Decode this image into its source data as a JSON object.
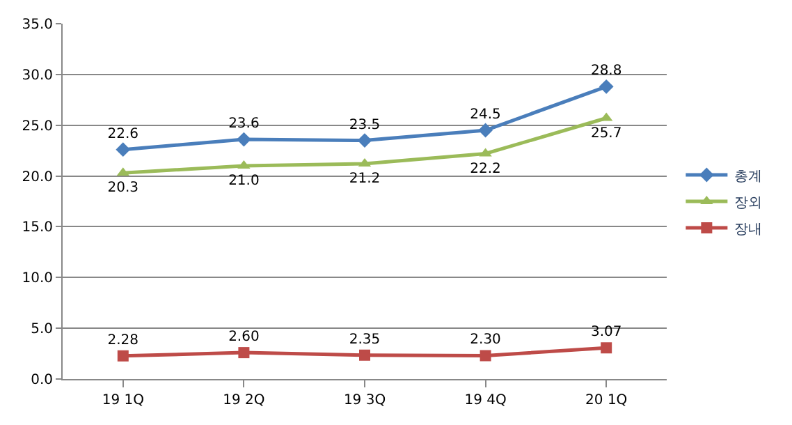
{
  "chart_data": {
    "type": "line",
    "categories": [
      "19 1Q",
      "19 2Q",
      "19 3Q",
      "19 4Q",
      "20 1Q"
    ],
    "series": [
      {
        "name": "총계",
        "color": "#4a7ebb",
        "marker": "diamond",
        "values": [
          22.6,
          23.6,
          23.5,
          24.5,
          28.8
        ],
        "value_labels": [
          "22.6",
          "23.6",
          "23.5",
          "24.5",
          "28.8"
        ]
      },
      {
        "name": "장외",
        "color": "#9bbb59",
        "marker": "triangle",
        "values": [
          20.3,
          21.0,
          21.2,
          22.2,
          25.7
        ],
        "value_labels": [
          "20.3",
          "21.0",
          "21.2",
          "22.2",
          "25.7"
        ]
      },
      {
        "name": "장내",
        "color": "#be4b48",
        "marker": "square",
        "values": [
          2.28,
          2.6,
          2.35,
          2.3,
          3.07
        ],
        "value_labels": [
          "2.28",
          "2.60",
          "2.35",
          "2.30",
          "3.07"
        ]
      }
    ],
    "ylim": [
      0,
      35
    ],
    "yticks": [
      {
        "value": 0,
        "label": "0.0"
      },
      {
        "value": 5,
        "label": "5.0"
      },
      {
        "value": 10,
        "label": "10.0"
      },
      {
        "value": 15,
        "label": "15.0"
      },
      {
        "value": 20,
        "label": "20.0"
      },
      {
        "value": 25,
        "label": "25.0"
      },
      {
        "value": 30,
        "label": "30.0"
      },
      {
        "value": 35,
        "label": "35.0"
      }
    ],
    "grid": "y",
    "legend": "right",
    "line_style": "solid"
  }
}
